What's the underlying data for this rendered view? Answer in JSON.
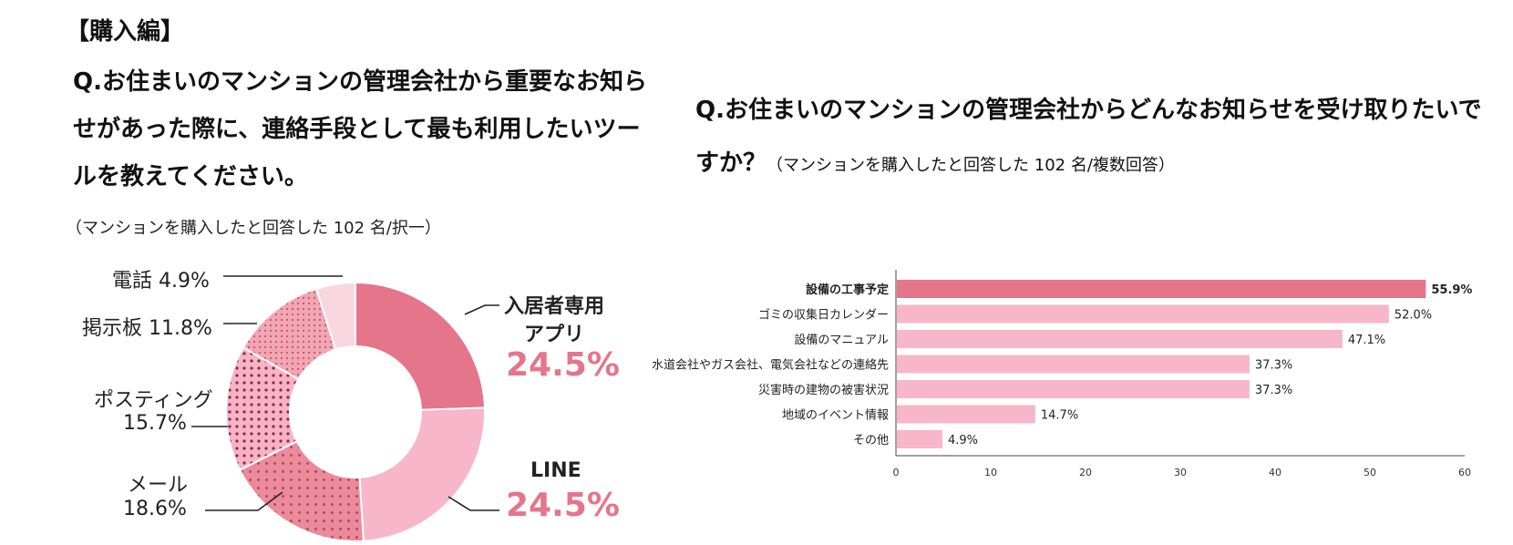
{
  "page": {
    "section_title": "【購入編】",
    "left_question": "Q.お住まいのマンションの管理会社から重要なお知らせがあった際に、連絡手段として最も利用したいツールを教えてください。",
    "left_note": "（マンションを購入したと回答した 102 名/択一）",
    "right_question": "Q.お住まいのマンションの管理会社からどんなお知らせを受け取りたいですか？",
    "right_note": "（マンションを購入したと回答した 102 名/複数回答）"
  },
  "colors": {
    "accent_dark": "#e5758a",
    "accent_light": "#f7b6c9",
    "slice_app": "#e5758a",
    "slice_line": "#f7b6c9",
    "slice_mail": "#ea8a9b",
    "slice_posting": "#f6b3c6",
    "slice_board": "#f2a6b3",
    "slice_tel": "#f9d7e0"
  },
  "chart_data": [
    {
      "type": "pie",
      "style": "donut",
      "slices": [
        {
          "label": "入居者専用アプリ",
          "value": 24.5,
          "label_text": "24.5%"
        },
        {
          "label": "LINE",
          "value": 24.5,
          "label_text": "24.5%"
        },
        {
          "label": "メール",
          "value": 18.6,
          "label_text": "18.6%"
        },
        {
          "label": "ポスティング",
          "value": 15.7,
          "label_text": "15.7%"
        },
        {
          "label": "掲示板",
          "value": 11.8,
          "label_text": "11.8%"
        },
        {
          "label": "電話",
          "value": 4.9,
          "label_text": "4.9%"
        }
      ],
      "labels": {
        "app_line1": "入居者専用",
        "app_line2": "アプリ",
        "app_pct": "24.5%",
        "line_name": "LINE",
        "line_pct": "24.5%",
        "mail_name": "メール",
        "mail_pct": "18.6%",
        "posting_name": "ポスティング",
        "posting_pct": "15.7%",
        "board": "掲示板 11.8%",
        "tel": "電話 4.9%"
      }
    },
    {
      "type": "bar",
      "orientation": "horizontal",
      "categories": [
        "設備の工事予定",
        "ゴミの収集日カレンダー",
        "設備のマニュアル",
        "水道会社やガス会社、電気会社などの連絡先",
        "災害時の建物の被害状況",
        "地域のイベント情報",
        "その他"
      ],
      "values": [
        55.9,
        52.0,
        47.1,
        37.3,
        37.3,
        14.7,
        4.9
      ],
      "value_labels": [
        "55.9%",
        "52.0%",
        "47.1%",
        "37.3%",
        "37.3%",
        "14.7%",
        "4.9%"
      ],
      "highlight_index": 0,
      "xlim": [
        0,
        60
      ],
      "xticks": [
        0,
        10,
        20,
        30,
        40,
        50,
        60
      ]
    }
  ]
}
